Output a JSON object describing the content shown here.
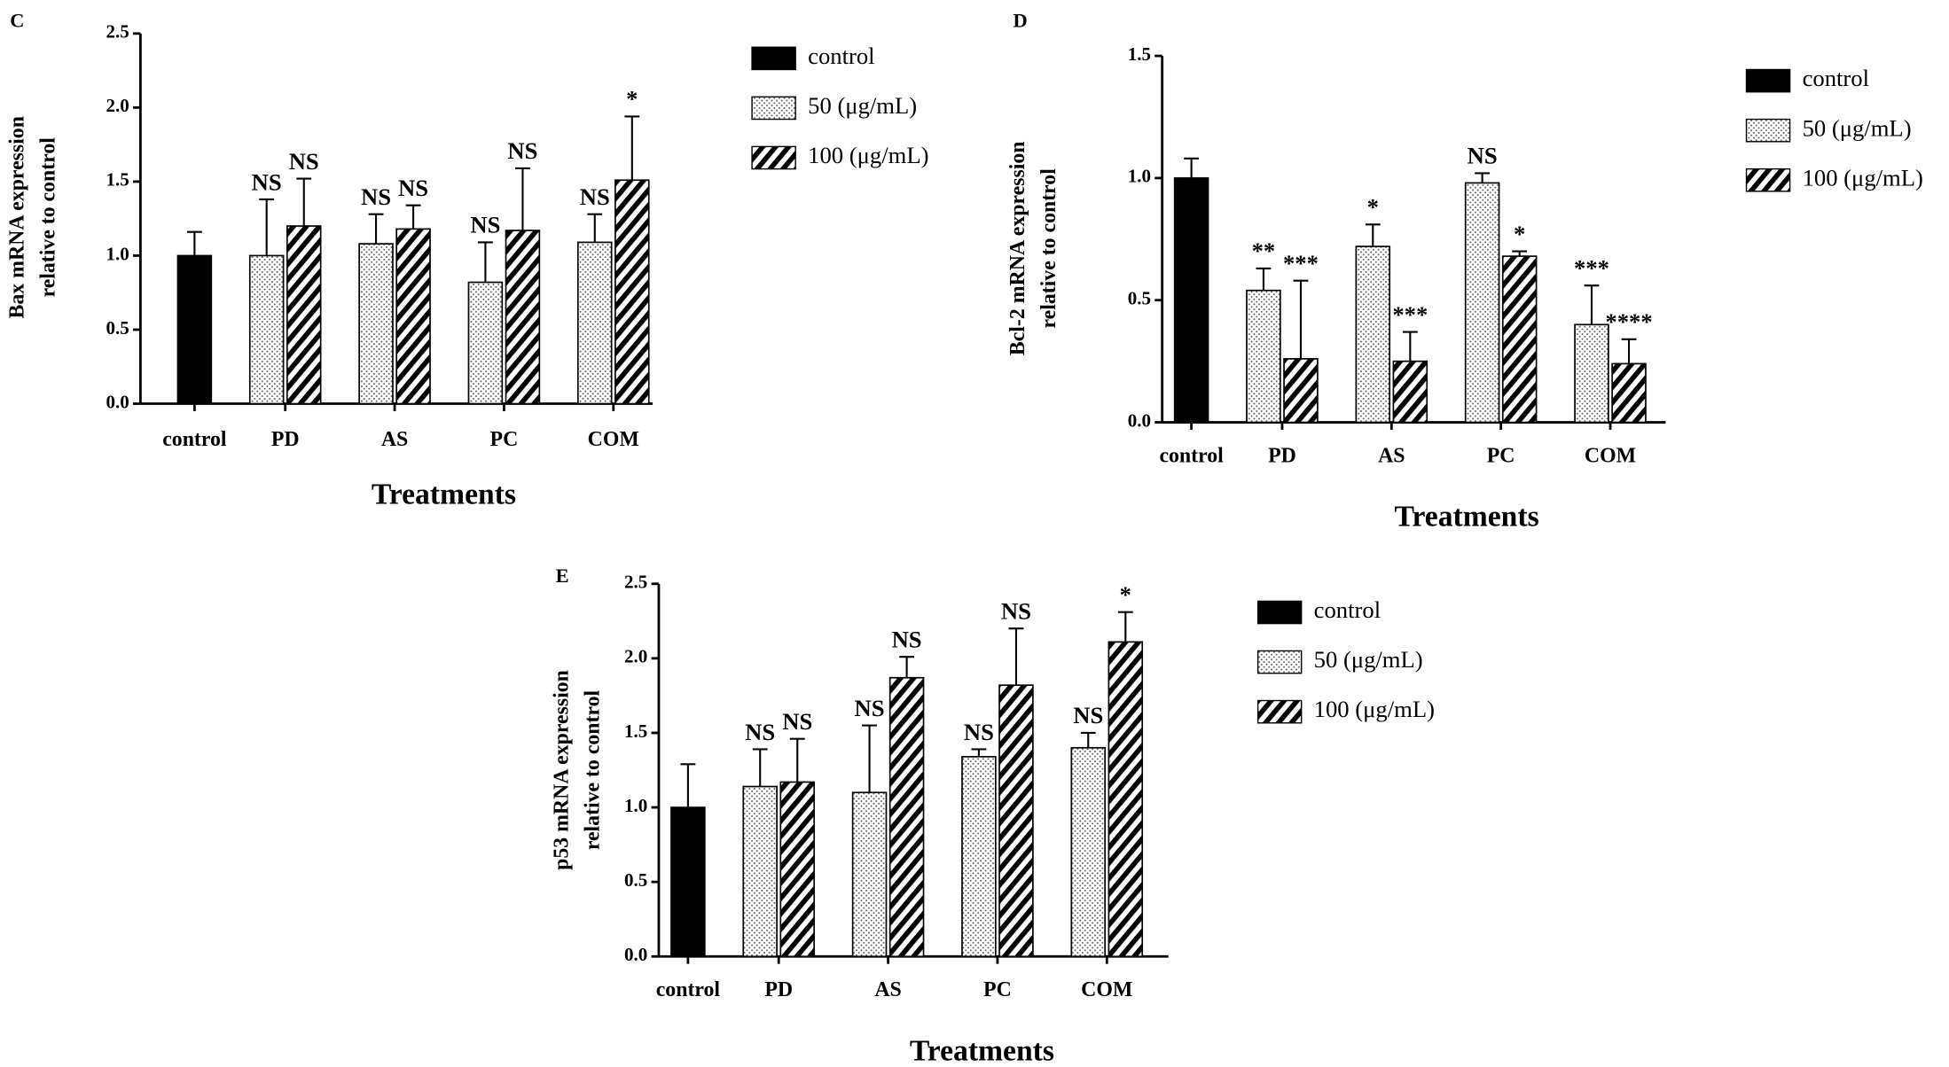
{
  "chart_data": [
    {
      "type": "bar",
      "panel": "C",
      "y_label": [
        "Bax mRNA expression",
        "relative to control"
      ],
      "x_label": "Treatments",
      "categories": [
        "control",
        "PD",
        "AS",
        "PC",
        "COM"
      ],
      "ylim": [
        0,
        2.5
      ],
      "yticks": [
        {
          "value": 0,
          "label": "0.0"
        },
        0.5,
        {
          "value": 1,
          "label": "1.0"
        },
        1.5,
        {
          "value": 2,
          "label": "2.0"
        },
        2.5
      ],
      "series": [
        {
          "name": "control",
          "color": "#000000",
          "values": [
            1.0,
            null,
            null,
            null,
            null
          ],
          "errors": [
            0.16,
            null,
            null,
            null,
            null
          ],
          "annotations": [
            null,
            null,
            null,
            null,
            null
          ]
        },
        {
          "name": "50 (μg/mL)",
          "color": "#ffffff",
          "pattern": "dots",
          "values": [
            null,
            1.0,
            1.08,
            0.82,
            1.09
          ],
          "errors": [
            null,
            0.38,
            0.2,
            0.27,
            0.19
          ],
          "annotations": [
            null,
            "NS",
            "NS",
            "NS",
            "NS"
          ]
        },
        {
          "name": "100 (μg/mL)",
          "color": "#ffffff",
          "pattern": "stripes",
          "values": [
            null,
            1.2,
            1.18,
            1.17,
            1.51
          ],
          "errors": [
            null,
            0.32,
            0.16,
            0.42,
            0.43
          ],
          "annotations": [
            null,
            "NS",
            "NS",
            "NS",
            "*"
          ]
        }
      ]
    },
    {
      "type": "bar",
      "panel": "D",
      "y_label": [
        "Bcl-2 mRNA expression",
        "relative to control"
      ],
      "x_label": "Treatments",
      "categories": [
        "control",
        "PD",
        "AS",
        "PC",
        "COM"
      ],
      "ylim": [
        0,
        1.5
      ],
      "yticks": [
        {
          "value": 0,
          "label": "0.0"
        },
        0.5,
        {
          "value": 1,
          "label": "1.0"
        },
        1.5
      ],
      "series": [
        {
          "name": "control",
          "color": "#000000",
          "values": [
            1.0,
            null,
            null,
            null,
            null
          ],
          "errors": [
            0.08,
            null,
            null,
            null,
            null
          ],
          "annotations": [
            null,
            null,
            null,
            null,
            null
          ]
        },
        {
          "name": "50 (μg/mL)",
          "color": "#ffffff",
          "pattern": "dots",
          "values": [
            null,
            0.54,
            0.72,
            0.98,
            0.4
          ],
          "errors": [
            null,
            0.09,
            0.09,
            0.04,
            0.16
          ],
          "annotations": [
            null,
            "**",
            "*",
            "NS",
            "***"
          ]
        },
        {
          "name": "100 (μg/mL)",
          "color": "#ffffff",
          "pattern": "stripes",
          "values": [
            null,
            0.26,
            0.25,
            0.68,
            0.24
          ],
          "errors": [
            null,
            0.32,
            0.12,
            0.02,
            0.1
          ],
          "annotations": [
            null,
            "***",
            "***",
            "*",
            "****"
          ]
        }
      ]
    },
    {
      "type": "bar",
      "panel": "E",
      "y_label": [
        "p53 mRNA expression",
        "relative to control"
      ],
      "x_label": "Treatments",
      "categories": [
        "control",
        "PD",
        "AS",
        "PC",
        "COM"
      ],
      "ylim": [
        0,
        2.5
      ],
      "yticks": [
        {
          "value": 0,
          "label": "0.0"
        },
        0.5,
        {
          "value": 1,
          "label": "1.0"
        },
        1.5,
        {
          "value": 2,
          "label": "2.0"
        },
        2.5
      ],
      "series": [
        {
          "name": "control",
          "color": "#000000",
          "values": [
            1.0,
            null,
            null,
            null,
            null
          ],
          "errors": [
            0.29,
            null,
            null,
            null,
            null
          ],
          "annotations": [
            null,
            null,
            null,
            null,
            null
          ]
        },
        {
          "name": "50 (μg/mL)",
          "color": "#ffffff",
          "pattern": "dots",
          "values": [
            null,
            1.14,
            1.1,
            1.34,
            1.4
          ],
          "errors": [
            null,
            0.25,
            0.45,
            0.05,
            0.1
          ],
          "annotations": [
            null,
            "NS",
            "NS",
            "NS",
            "NS"
          ]
        },
        {
          "name": "100 (μg/mL)",
          "color": "#ffffff",
          "pattern": "stripes",
          "values": [
            null,
            1.17,
            1.87,
            1.82,
            2.11
          ],
          "errors": [
            null,
            0.29,
            0.14,
            0.38,
            0.2
          ],
          "annotations": [
            null,
            "NS",
            "NS",
            "NS",
            "*"
          ]
        }
      ]
    }
  ]
}
